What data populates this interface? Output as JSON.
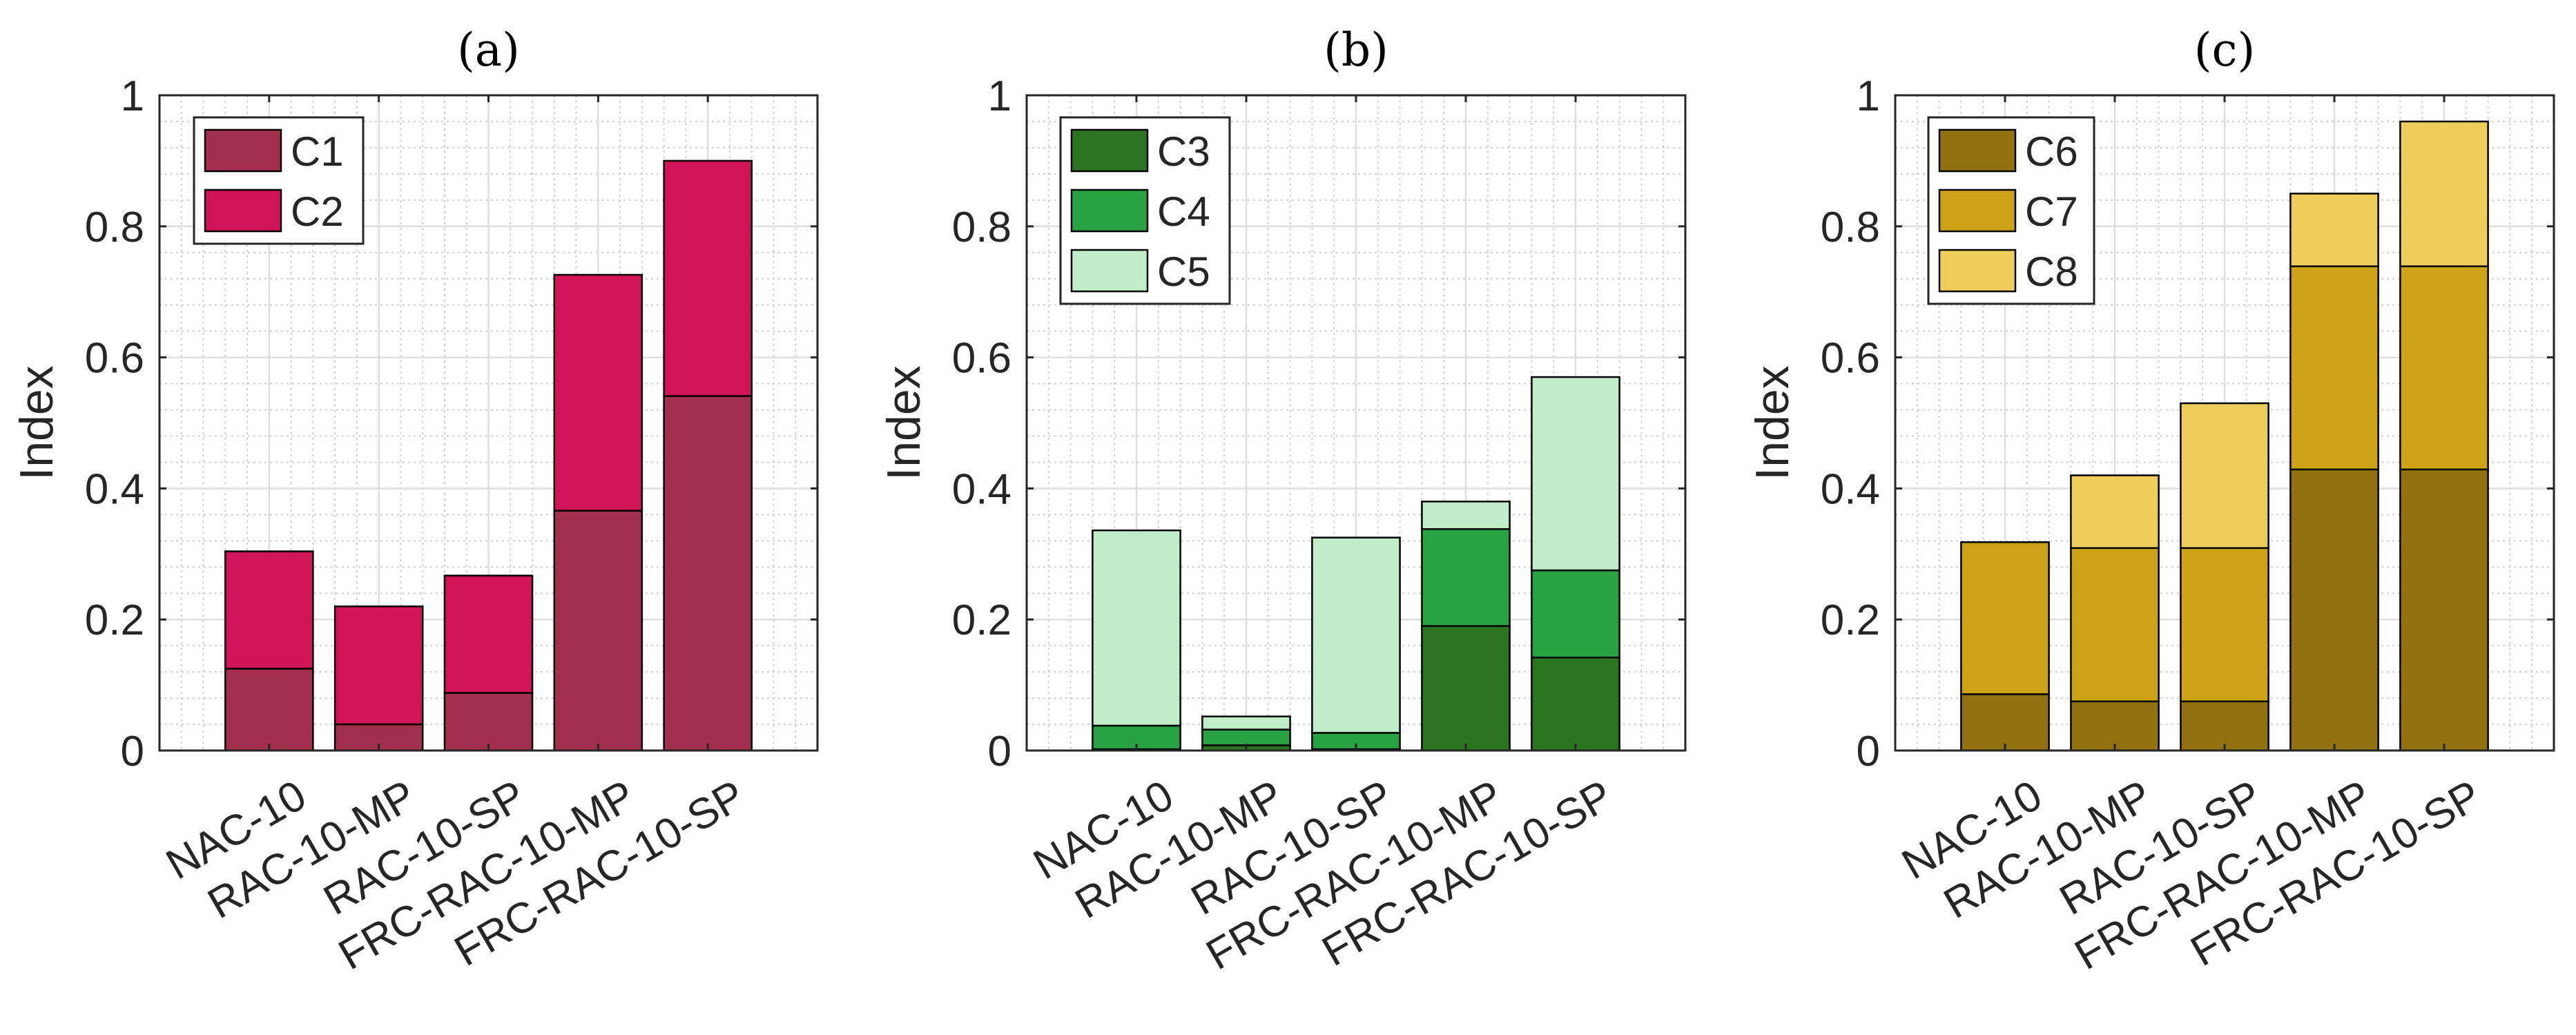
{
  "figure": {
    "background": "#ffffff"
  },
  "chart_data": [
    {
      "type": "bar",
      "stacked": true,
      "title": "(a)",
      "xlabel": "",
      "ylabel": "Index",
      "ylim": [
        0,
        1
      ],
      "yticks": [
        0,
        0.2,
        0.4,
        0.6,
        0.8,
        1
      ],
      "ytick_labels": [
        "0",
        "0.2",
        "0.4",
        "0.6",
        "0.8",
        "1"
      ],
      "grid": true,
      "minor_grid": true,
      "legend_position": "top-left",
      "categories": [
        "NAC-10",
        "RAC-10-MP",
        "RAC-10-SP",
        "FRC-RAC-10-MP",
        "FRC-RAC-10-SP"
      ],
      "series": [
        {
          "name": "C1",
          "color": "#a22f4e",
          "values": [
            0.125,
            0.04,
            0.088,
            0.366,
            0.541
          ]
        },
        {
          "name": "C2",
          "color": "#d11458",
          "values": [
            0.179,
            0.18,
            0.179,
            0.36,
            0.359
          ]
        }
      ]
    },
    {
      "type": "bar",
      "stacked": true,
      "title": "(b)",
      "xlabel": "",
      "ylabel": "Index",
      "ylim": [
        0,
        1
      ],
      "yticks": [
        0,
        0.2,
        0.4,
        0.6,
        0.8,
        1
      ],
      "ytick_labels": [
        "0",
        "0.2",
        "0.4",
        "0.6",
        "0.8",
        "1"
      ],
      "grid": true,
      "minor_grid": true,
      "legend_position": "top-left",
      "categories": [
        "NAC-10",
        "RAC-10-MP",
        "RAC-10-SP",
        "FRC-RAC-10-MP",
        "FRC-RAC-10-SP"
      ],
      "series": [
        {
          "name": "C3",
          "color": "#2c7520",
          "values": [
            0.002,
            0.008,
            0.002,
            0.19,
            0.142
          ]
        },
        {
          "name": "C4",
          "color": "#29a244",
          "values": [
            0.036,
            0.024,
            0.025,
            0.148,
            0.133
          ]
        },
        {
          "name": "C5",
          "color": "#c0ecc9",
          "values": [
            0.298,
            0.02,
            0.298,
            0.042,
            0.295
          ]
        }
      ]
    },
    {
      "type": "bar",
      "stacked": true,
      "title": "(c)",
      "xlabel": "",
      "ylabel": "Index",
      "ylim": [
        0,
        1
      ],
      "yticks": [
        0,
        0.2,
        0.4,
        0.6,
        0.8,
        1
      ],
      "ytick_labels": [
        "0",
        "0.2",
        "0.4",
        "0.6",
        "0.8",
        "1"
      ],
      "grid": true,
      "minor_grid": true,
      "legend_position": "top-left",
      "categories": [
        "NAC-10",
        "RAC-10-MP",
        "RAC-10-SP",
        "FRC-RAC-10-MP",
        "FRC-RAC-10-SP"
      ],
      "series": [
        {
          "name": "C6",
          "color": "#927210",
          "values": [
            0.086,
            0.075,
            0.075,
            0.429,
            0.429
          ]
        },
        {
          "name": "C7",
          "color": "#cda216",
          "values": [
            0.232,
            0.234,
            0.234,
            0.31,
            0.31
          ]
        },
        {
          "name": "C8",
          "color": "#efcd5a",
          "values": [
            0,
            0.111,
            0.221,
            0.111,
            0.221
          ]
        }
      ]
    }
  ]
}
